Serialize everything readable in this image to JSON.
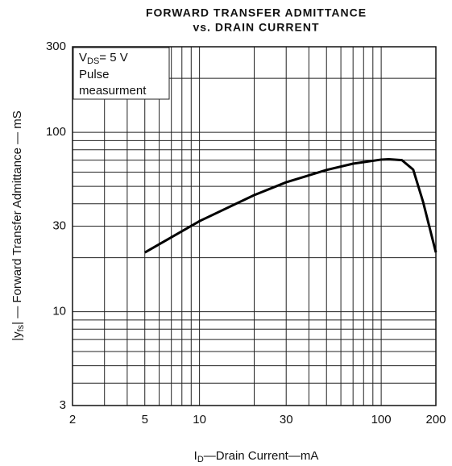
{
  "chart_data": {
    "type": "line",
    "title": [
      "FORWARD TRANSFER ADMITTANCE",
      "vs. DRAIN CURRENT"
    ],
    "x_label": {
      "main": "I",
      "sub": "D",
      "rest": "—Drain Current—mA"
    },
    "y_label": {
      "pre": "|y",
      "sub": "fs",
      "rest": "| — Forward Transfer Admittance — mS"
    },
    "annotation": {
      "main": "V",
      "sub": "DS",
      "rest": "= 5 V",
      "lines": [
        "Pulse",
        "measurment"
      ]
    },
    "log_x": true,
    "log_y": true,
    "grid": true,
    "xlim": [
      2,
      200
    ],
    "ylim": [
      3,
      300
    ],
    "xticks": [
      2,
      5,
      10,
      30,
      100,
      200
    ],
    "yticks": [
      3,
      10,
      30,
      100,
      300
    ],
    "xgrid": [
      2,
      3,
      4,
      5,
      6,
      7,
      8,
      9,
      10,
      20,
      30,
      40,
      50,
      60,
      70,
      80,
      90,
      100,
      200
    ],
    "ygrid": [
      3,
      4,
      5,
      6,
      7,
      8,
      9,
      10,
      20,
      30,
      40,
      50,
      60,
      70,
      80,
      90,
      100,
      200,
      300
    ],
    "series": [
      {
        "name": "Yfs",
        "color": "#000000",
        "x": [
          5,
          10,
          20,
          30,
          50,
          70,
          100,
          110,
          130,
          150,
          170,
          200
        ],
        "values": [
          21.4,
          32,
          44.7,
          52.7,
          61.7,
          66.9,
          70.5,
          70.8,
          70,
          62,
          41,
          21.4
        ]
      }
    ]
  }
}
